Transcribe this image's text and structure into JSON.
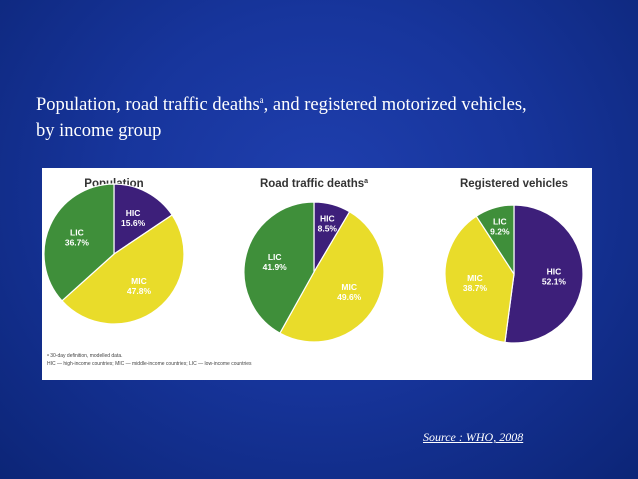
{
  "slide": {
    "title_part1": "Population, road traffic deaths",
    "title_sup": "a",
    "title_part2": ", and registered motorized vehicles,",
    "title_line2": "by income group",
    "source": "Source : WHO, 2008"
  },
  "colors": {
    "hic": "#3d1f7a",
    "mic": "#e9dc2a",
    "lic": "#3f8f3a",
    "background": "#1a3aa6"
  },
  "footnote": {
    "line1": "ᵃ 30-day definition, modelled data.",
    "line2": "HIC — high-income countries; MIC — middle-income countries; LIC — low-income countries"
  },
  "chart_data": [
    {
      "type": "pie",
      "title": "Population",
      "title_sup": "",
      "slices": [
        {
          "name": "HIC",
          "value": 15.6,
          "label": "15.6%"
        },
        {
          "name": "MIC",
          "value": 47.8,
          "label": "47.8%"
        },
        {
          "name": "LIC",
          "value": 36.7,
          "label": "36.7%"
        }
      ]
    },
    {
      "type": "pie",
      "title": "Road traffic deaths",
      "title_sup": "a",
      "slices": [
        {
          "name": "HIC",
          "value": 8.5,
          "label": "8.5%"
        },
        {
          "name": "MIC",
          "value": 49.6,
          "label": "49.6%"
        },
        {
          "name": "LIC",
          "value": 41.9,
          "label": "41.9%"
        }
      ]
    },
    {
      "type": "pie",
      "title": "Registered vehicles",
      "title_sup": "",
      "slices": [
        {
          "name": "HIC",
          "value": 52.1,
          "label": "52.1%"
        },
        {
          "name": "MIC",
          "value": 38.7,
          "label": "38.7%"
        },
        {
          "name": "LIC",
          "value": 9.2,
          "label": "9.2%"
        }
      ]
    }
  ]
}
